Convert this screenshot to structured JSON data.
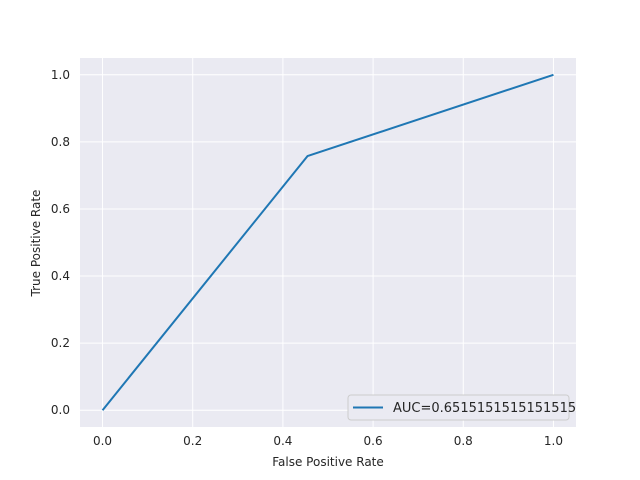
{
  "chart_data": {
    "type": "line",
    "xlabel": "False Positive Rate",
    "ylabel": "True Positive Rate",
    "xlim": [
      -0.05,
      1.05
    ],
    "ylim": [
      -0.05,
      1.05
    ],
    "xticks": [
      "0.0",
      "0.2",
      "0.4",
      "0.6",
      "0.8",
      "1.0"
    ],
    "yticks": [
      "0.0",
      "0.2",
      "0.4",
      "0.6",
      "0.8",
      "1.0"
    ],
    "grid": true,
    "legend_position": "lower-right",
    "series": [
      {
        "name": "AUC=0.6515151515151515",
        "color": "#1f77b4",
        "x": [
          0.0,
          0.4545,
          1.0
        ],
        "y": [
          0.0,
          0.7576,
          1.0
        ]
      }
    ],
    "colors": {
      "plot_background": "#eaeaf2",
      "grid": "#ffffff",
      "text": "#262626"
    }
  }
}
